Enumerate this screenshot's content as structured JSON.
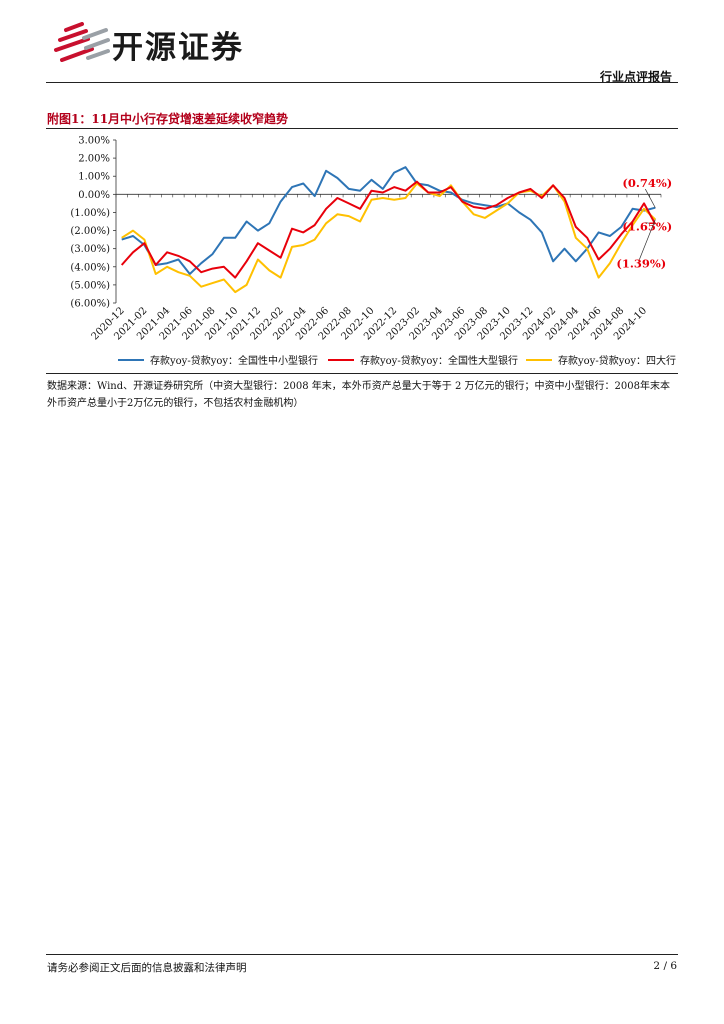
{
  "header": {
    "brand": "开源证券",
    "section": "行业点评报告"
  },
  "figure": {
    "title": "附图1：11月中小行存贷增速差延续收窄趋势",
    "source": "数据来源：Wind、开源证券研究所（中资大型银行：2008 年末，本外币资产总量大于等于 2 万亿元的银行；中资中小型银行：2008年末本外币资产总量小于2万亿元的银行，不包括农村金融机构）"
  },
  "footer": {
    "disclaimer": "请务必参阅正文后面的信息披露和法律声明",
    "page": "2 / 6"
  },
  "colors": {
    "brand_red": "#c8102e",
    "title_red": "#b3001b",
    "series_blue": "#2e75b6",
    "series_red": "#e8000b",
    "series_yellow": "#ffc000"
  },
  "chart_data": {
    "type": "line",
    "title": "",
    "xlabel": "",
    "ylabel": "",
    "ylim": [
      -6.0,
      3.0
    ],
    "yticks": [
      3.0,
      2.0,
      1.0,
      0.0,
      -1.0,
      -2.0,
      -3.0,
      -4.0,
      -5.0,
      -6.0
    ],
    "ytick_labels": [
      "3.00%",
      "2.00%",
      "1.00%",
      "0.00%",
      "(1.00%)",
      "(2.00%)",
      "(3.00%)",
      "(4.00%)",
      "(5.00%)",
      "(6.00%)"
    ],
    "xtick_labels": [
      "2020-12",
      "2021-02",
      "2021-04",
      "2021-06",
      "2021-08",
      "2021-10",
      "2021-12",
      "2022-02",
      "2022-04",
      "2022-06",
      "2022-08",
      "2022-10",
      "2022-12",
      "2023-02",
      "2023-04",
      "2023-06",
      "2023-08",
      "2023-10",
      "2023-12",
      "2024-02",
      "2024-04",
      "2024-06",
      "2024-08",
      "2024-10"
    ],
    "x": [
      "2020-12",
      "2021-01",
      "2021-02",
      "2021-03",
      "2021-04",
      "2021-05",
      "2021-06",
      "2021-07",
      "2021-08",
      "2021-09",
      "2021-10",
      "2021-11",
      "2021-12",
      "2022-01",
      "2022-02",
      "2022-03",
      "2022-04",
      "2022-05",
      "2022-06",
      "2022-07",
      "2022-08",
      "2022-09",
      "2022-10",
      "2022-11",
      "2022-12",
      "2023-01",
      "2023-02",
      "2023-03",
      "2023-04",
      "2023-05",
      "2023-06",
      "2023-07",
      "2023-08",
      "2023-09",
      "2023-10",
      "2023-11",
      "2023-12",
      "2024-01",
      "2024-02",
      "2024-03",
      "2024-04",
      "2024-05",
      "2024-06",
      "2024-07",
      "2024-08",
      "2024-09",
      "2024-10",
      "2024-11"
    ],
    "series": [
      {
        "name": "存款yoy-贷款yoy：全国性中小型银行",
        "color": "#2e75b6",
        "values": [
          -2.5,
          -2.3,
          -2.8,
          -3.9,
          -3.8,
          -3.6,
          -4.4,
          -3.8,
          -3.3,
          -2.4,
          -2.4,
          -1.5,
          -2.0,
          -1.6,
          -0.4,
          0.4,
          0.6,
          -0.1,
          1.3,
          0.9,
          0.3,
          0.2,
          0.8,
          0.3,
          1.2,
          1.5,
          0.6,
          0.5,
          0.2,
          0.1,
          -0.3,
          -0.5,
          -0.6,
          -0.7,
          -0.5,
          -1.0,
          -1.4,
          -2.1,
          -3.7,
          -3.0,
          -3.7,
          -3.0,
          -2.1,
          -2.3,
          -1.8,
          -0.8,
          -0.9,
          -0.74
        ]
      },
      {
        "name": "存款yoy-贷款yoy：全国性大型银行",
        "color": "#e8000b",
        "values": [
          -3.9,
          -3.2,
          -2.7,
          -3.9,
          -3.2,
          -3.4,
          -3.7,
          -4.3,
          -4.1,
          -4.0,
          -4.6,
          -3.7,
          -2.7,
          -3.1,
          -3.5,
          -1.9,
          -2.1,
          -1.7,
          -0.8,
          -0.2,
          -0.5,
          -0.8,
          0.2,
          0.1,
          0.4,
          0.2,
          0.7,
          0.1,
          0.1,
          0.4,
          -0.4,
          -0.7,
          -0.8,
          -0.6,
          -0.2,
          0.1,
          0.3,
          -0.2,
          0.5,
          -0.2,
          -1.8,
          -2.4,
          -3.6,
          -3.0,
          -2.2,
          -1.5,
          -0.5,
          -1.65
        ]
      },
      {
        "name": "存款yoy-贷款yoy：四大行",
        "color": "#ffc000",
        "values": [
          -2.4,
          -2.0,
          -2.5,
          -4.4,
          -4.0,
          -4.3,
          -4.5,
          -5.1,
          -4.9,
          -4.7,
          -5.4,
          -5.0,
          -3.6,
          -4.2,
          -4.6,
          -2.9,
          -2.8,
          -2.5,
          -1.6,
          -1.1,
          -1.2,
          -1.5,
          -0.3,
          -0.2,
          -0.3,
          -0.2,
          0.6,
          0.1,
          -0.1,
          0.5,
          -0.4,
          -1.1,
          -1.3,
          -0.9,
          -0.5,
          0.1,
          0.2,
          -0.1,
          0.5,
          -0.4,
          -2.4,
          -3.0,
          -4.6,
          -3.8,
          -2.7,
          -1.7,
          -0.8,
          -1.39
        ]
      }
    ],
    "annotations": [
      {
        "text": "(0.74%)",
        "series": 0,
        "value": -0.74
      },
      {
        "text": "(1.65%)",
        "series": 1,
        "value": -1.65
      },
      {
        "text": "(1.39%)",
        "series": 2,
        "value": -1.39
      }
    ],
    "legend": "bottom",
    "grid": false
  }
}
